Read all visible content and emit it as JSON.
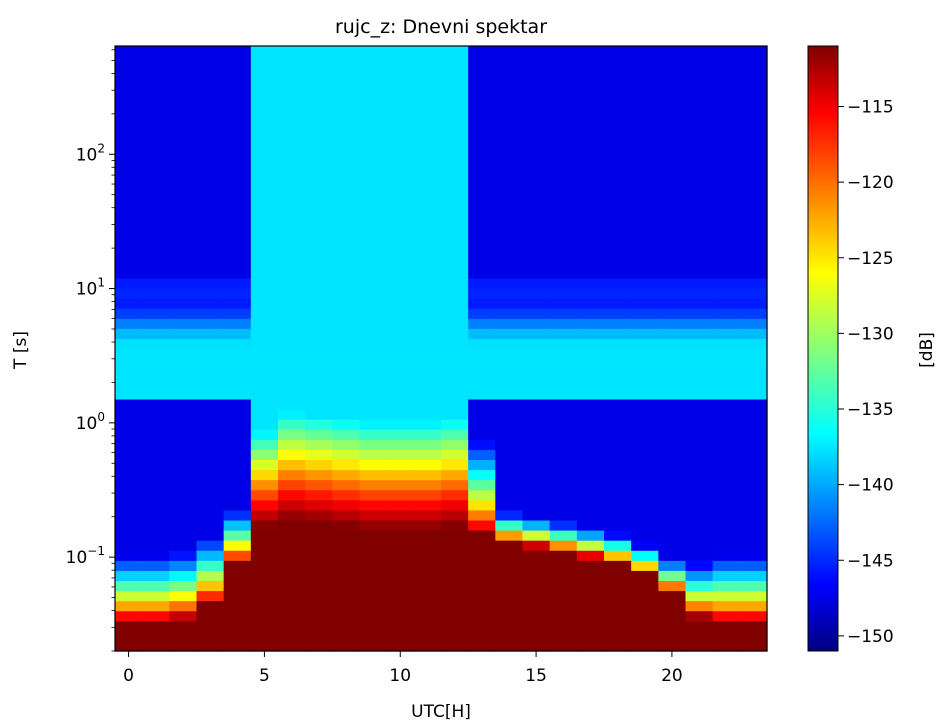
{
  "chart_data": {
    "type": "heatmap",
    "title": "rujc_z: Dnevni spektar",
    "xlabel": "UTC[H]",
    "ylabel": "T [s]",
    "x_ticks": [
      "0",
      "5",
      "10",
      "15",
      "20"
    ],
    "x_tick_values": [
      0,
      5,
      10,
      15,
      20
    ],
    "y_scale": "log",
    "y_ticks": [
      {
        "value": 100,
        "base": "10",
        "exp": "2"
      },
      {
        "value": 10,
        "base": "10",
        "exp": "1"
      },
      {
        "value": 1,
        "base": "10",
        "exp": "0"
      },
      {
        "value": 0.1,
        "base": "10",
        "exp": "−1"
      }
    ],
    "xlim": [
      -0.5,
      23.5
    ],
    "ylim": [
      0.02,
      640
    ],
    "colorbar": {
      "label": "[dB]",
      "ticks": [
        "−115",
        "−120",
        "−125",
        "−130",
        "−135",
        "−140",
        "−145",
        "−150"
      ],
      "tick_values": [
        -115,
        -120,
        -125,
        -130,
        -135,
        -140,
        -145,
        -150
      ],
      "range": [
        -151,
        -111
      ],
      "colormap": "jet"
    },
    "hours": [
      0,
      1,
      2,
      3,
      4,
      5,
      6,
      7,
      8,
      9,
      10,
      11,
      12,
      13,
      14,
      15,
      16,
      17,
      18,
      19,
      20,
      21,
      22,
      23
    ],
    "upper_edge_log10T": [
      1.2,
      1.2,
      1.2,
      1.2,
      1.25,
      1.45,
      1.4,
      1.35,
      1.35,
      1.4,
      1.4,
      1.45,
      1.5,
      1.35,
      1.25,
      1.2,
      1.2,
      1.2,
      1.2,
      1.2,
      1.2,
      1.2,
      1.2,
      1.2
    ],
    "red_edge_T": [
      0.033,
      0.033,
      0.035,
      0.045,
      0.09,
      0.17,
      0.19,
      0.18,
      0.17,
      0.16,
      0.16,
      0.16,
      0.17,
      0.15,
      0.13,
      0.12,
      0.11,
      0.1,
      0.09,
      0.075,
      0.055,
      0.036,
      0.033,
      0.033
    ],
    "transition_width_log10": [
      0.5,
      0.5,
      0.5,
      0.5,
      0.4,
      0.7,
      0.8,
      0.8,
      0.8,
      0.8,
      0.8,
      0.8,
      0.8,
      0.7,
      0.22,
      0.22,
      0.22,
      0.22,
      0.22,
      0.22,
      0.25,
      0.4,
      0.5,
      0.5
    ],
    "daytime_hours": [
      5,
      6,
      7,
      8,
      9,
      10,
      11,
      12
    ]
  }
}
